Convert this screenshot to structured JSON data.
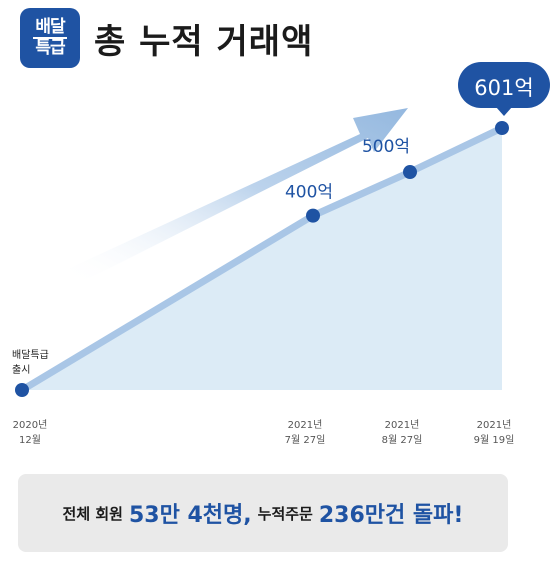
{
  "header": {
    "logo_line1": "배달",
    "logo_line2": "특급",
    "title": "총 누적 거래액"
  },
  "chart_data": {
    "type": "area",
    "title": "총 누적 거래액",
    "unit": "억",
    "points": [
      {
        "x_label_line1": "2020년",
        "x_label_line2": "12월",
        "value": 0,
        "label_line1": "배달특급",
        "label_line2": "출시"
      },
      {
        "x_label_line1": "2021년",
        "x_label_line2": "7월 27일",
        "value": 400,
        "label": "400억"
      },
      {
        "x_label_line1": "2021년",
        "x_label_line2": "8월 27일",
        "value": 500,
        "label": "500억"
      },
      {
        "x_label_line1": "2021년",
        "x_label_line2": "9월 19일",
        "value": 601,
        "label": "601억"
      }
    ],
    "colors": {
      "line": "#a9c6e6",
      "area": "#dcebf6",
      "marker": "#1f53a3",
      "label": "#1f53a3",
      "callout_bg": "#1f53a3"
    }
  },
  "summary": {
    "part1": "전체 회원",
    "part2": "53만 4천명,",
    "part3": "누적주문",
    "part4": "236만건 돌파!"
  }
}
